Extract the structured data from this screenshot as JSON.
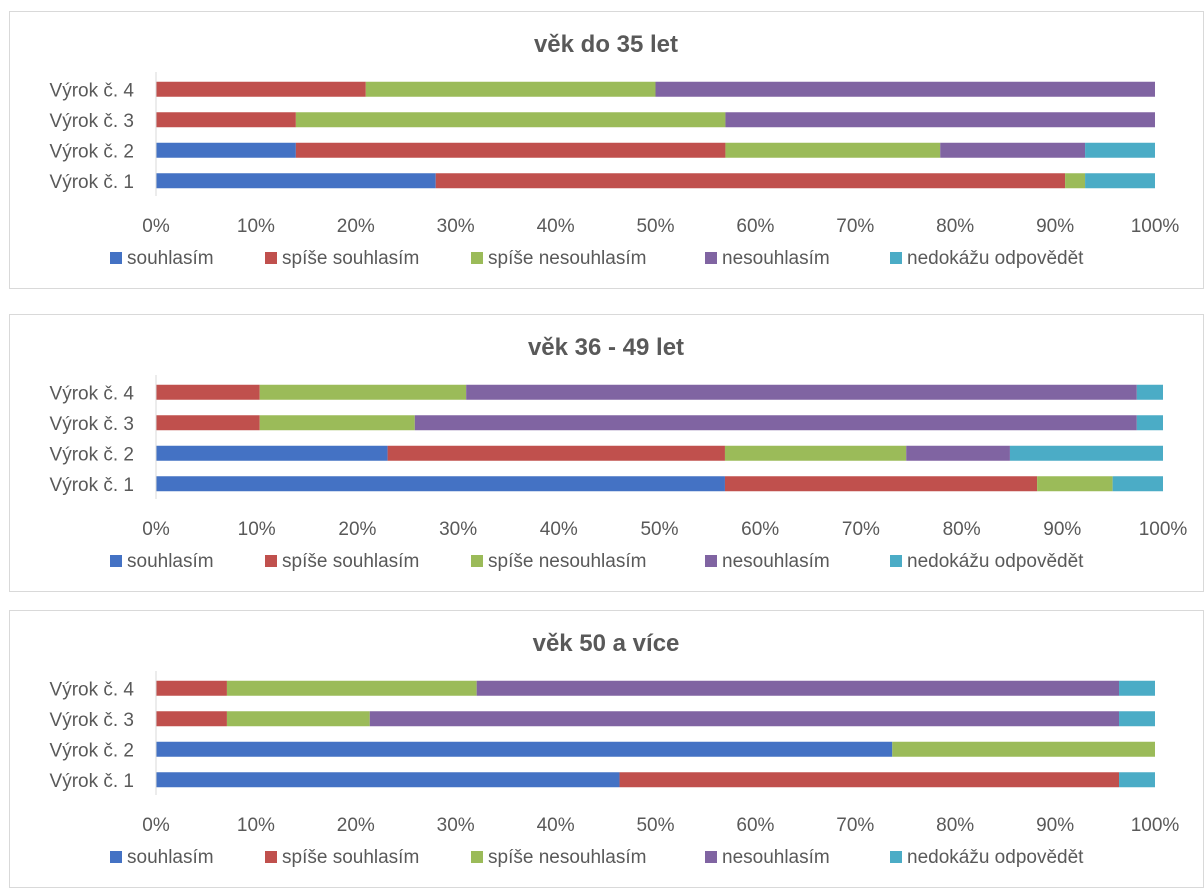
{
  "chart_data": [
    {
      "type": "bar",
      "orientation": "horizontal",
      "stacked": "percent",
      "title": "věk do 35 let",
      "categories": [
        "Výrok č. 1",
        "Výrok č. 2",
        "Výrok č. 3",
        "Výrok č. 4"
      ],
      "x_ticks": [
        "0%",
        "10%",
        "20%",
        "30%",
        "40%",
        "50%",
        "60%",
        "70%",
        "80%",
        "90%",
        "100%"
      ],
      "xlim": [
        0,
        100
      ],
      "legend_position": "bottom",
      "series": [
        {
          "name": "souhlasím",
          "color": "#4472c4",
          "values": [
            28,
            14,
            0,
            0
          ]
        },
        {
          "name": "spíše souhlasím",
          "color": "#c0504d",
          "values": [
            63,
            43,
            14,
            21
          ]
        },
        {
          "name": "spíše nesouhlasím",
          "color": "#9bbb59",
          "values": [
            2,
            21.5,
            43,
            29
          ]
        },
        {
          "name": "nesouhlasím",
          "color": "#8064a2",
          "values": [
            0,
            14.5,
            43,
            50
          ]
        },
        {
          "name": "nedokážu odpovědět",
          "color": "#4bacc6",
          "values": [
            7,
            7,
            0,
            0
          ]
        }
      ]
    },
    {
      "type": "bar",
      "orientation": "horizontal",
      "stacked": "percent",
      "title": "věk 36 - 49 let",
      "categories": [
        "Výrok č. 1",
        "Výrok č. 2",
        "Výrok č. 3",
        "Výrok č. 4"
      ],
      "x_ticks": [
        "0%",
        "10%",
        "20%",
        "30%",
        "40%",
        "50%",
        "60%",
        "70%",
        "80%",
        "90%",
        "100%"
      ],
      "xlim": [
        0,
        100
      ],
      "legend_position": "bottom",
      "series": [
        {
          "name": "souhlasím",
          "color": "#4472c4",
          "values": [
            56.5,
            23,
            0,
            0
          ]
        },
        {
          "name": "spíše souhlasím",
          "color": "#c0504d",
          "values": [
            31,
            33.5,
            10.3,
            10.3
          ]
        },
        {
          "name": "spíše nesouhlasím",
          "color": "#9bbb59",
          "values": [
            7.5,
            18,
            15.4,
            20.5
          ]
        },
        {
          "name": "nesouhlasím",
          "color": "#8064a2",
          "values": [
            0,
            10.3,
            71.7,
            66.6
          ]
        },
        {
          "name": "nedokážu odpovědět",
          "color": "#4bacc6",
          "values": [
            5,
            15.2,
            2.6,
            2.6
          ]
        }
      ]
    },
    {
      "type": "bar",
      "orientation": "horizontal",
      "stacked": "percent",
      "title": "věk 50 a více",
      "categories": [
        "Výrok č. 1",
        "Výrok č. 2",
        "Výrok č. 3",
        "Výrok č. 4"
      ],
      "x_ticks": [
        "0%",
        "10%",
        "20%",
        "30%",
        "40%",
        "50%",
        "60%",
        "70%",
        "80%",
        "90%",
        "100%"
      ],
      "xlim": [
        0,
        100
      ],
      "legend_position": "bottom",
      "series": [
        {
          "name": "souhlasím",
          "color": "#4472c4",
          "values": [
            46.4,
            73.7,
            0,
            0
          ]
        },
        {
          "name": "spíše souhlasím",
          "color": "#c0504d",
          "values": [
            50,
            0,
            7.1,
            7.1
          ]
        },
        {
          "name": "spíše nesouhlasím",
          "color": "#9bbb59",
          "values": [
            0,
            26.3,
            14.3,
            25
          ]
        },
        {
          "name": "nesouhlasím",
          "color": "#8064a2",
          "values": [
            0,
            0,
            75,
            64.3
          ]
        },
        {
          "name": "nedokážu odpovědět",
          "color": "#4bacc6",
          "values": [
            3.6,
            0,
            3.6,
            3.6
          ]
        }
      ]
    }
  ]
}
